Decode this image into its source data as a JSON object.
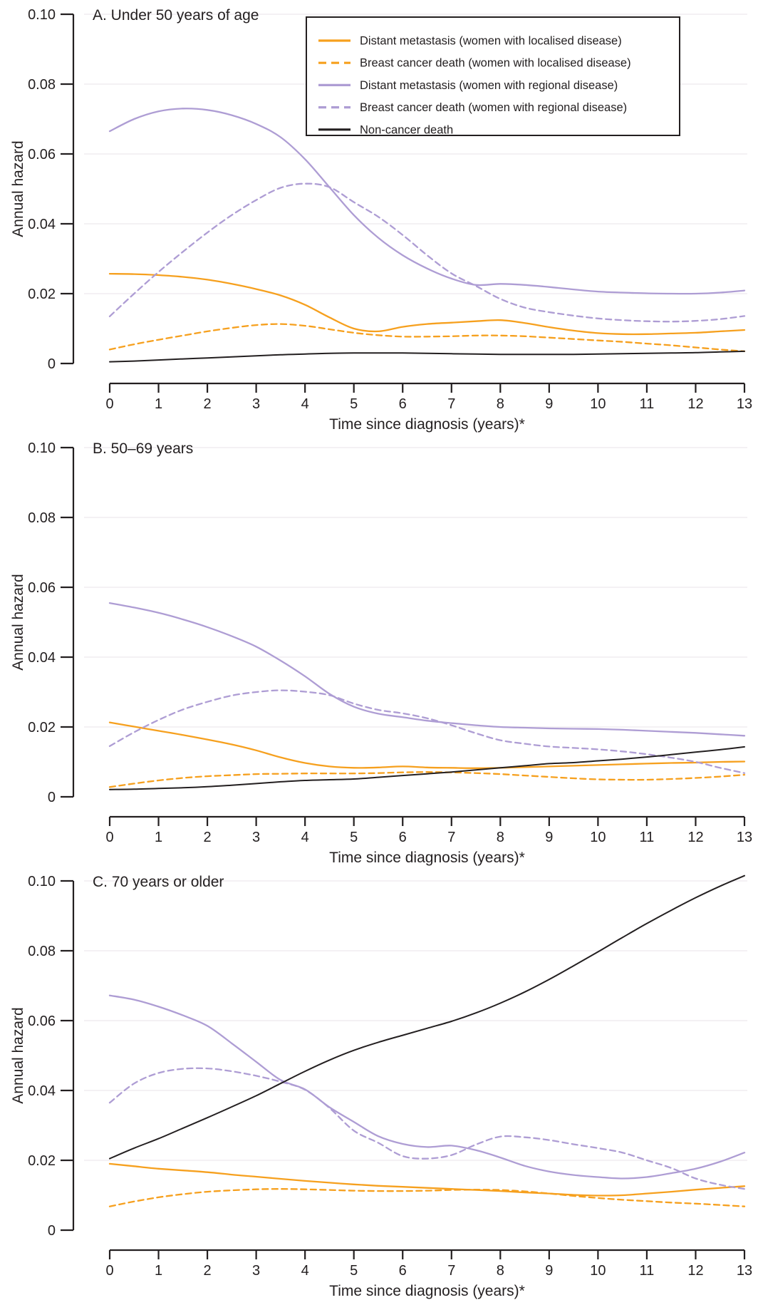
{
  "figure": {
    "background": "#ffffff",
    "text_color": "#231f20",
    "axis_color": "#231f20",
    "grid_color": "#f4f1f4",
    "y_axis_label": "Annual hazard",
    "x_axis_label": "Time since diagnosis (years)*",
    "y_ticks": [
      0,
      0.02,
      0.04,
      0.06,
      0.08,
      0.1
    ],
    "y_tick_labels": [
      "0",
      "0.02",
      "0.04",
      "0.06",
      "0.08",
      "0.10"
    ],
    "x_tick_labels": [
      "0",
      "1",
      "2",
      "3",
      "4",
      "5",
      "6",
      "7",
      "8",
      "9",
      "10",
      "11",
      "12",
      "13"
    ],
    "colors": {
      "localised": "#f6a01e",
      "regional": "#ae9dd4",
      "noncancer": "#231f20"
    },
    "legend": {
      "position": "top-right",
      "entries": [
        {
          "label": "Distant metastasis (women with localised disease)",
          "color": "#f6a01e",
          "dash": false
        },
        {
          "label": "Breast cancer death (women with localised disease)",
          "color": "#f6a01e",
          "dash": true
        },
        {
          "label": "Distant metastasis (women with regional disease)",
          "color": "#ae9dd4",
          "dash": false
        },
        {
          "label": "Breast cancer death (women with regional disease)",
          "color": "#ae9dd4",
          "dash": true
        },
        {
          "label": "Non-cancer death",
          "color": "#231f20",
          "dash": false
        }
      ]
    }
  },
  "chart_data": [
    {
      "type": "line",
      "title": "A. Under 50 years of age",
      "xlabel": "Time since diagnosis (years)*",
      "ylabel": "Annual hazard",
      "xlim": [
        0,
        13
      ],
      "ylim": [
        0,
        0.1
      ],
      "grid": true,
      "legend_visible": true,
      "x": [
        0,
        0.5,
        1,
        1.5,
        2,
        2.5,
        3,
        3.5,
        4,
        4.5,
        5,
        5.5,
        6,
        6.5,
        7,
        7.5,
        8,
        8.5,
        9,
        9.5,
        10,
        10.5,
        11,
        11.5,
        12,
        12.5,
        13
      ],
      "series": [
        {
          "name": "Distant metastasis (women with localised disease)",
          "color": "#f6a01e",
          "dash": false,
          "values": [
            0.0257,
            0.0256,
            0.0253,
            0.0248,
            0.024,
            0.0228,
            0.0213,
            0.0195,
            0.0168,
            0.0132,
            0.01,
            0.0092,
            0.0105,
            0.0113,
            0.0117,
            0.0121,
            0.0124,
            0.0116,
            0.0104,
            0.0094,
            0.0087,
            0.0084,
            0.0084,
            0.0086,
            0.0088,
            0.0092,
            0.0096
          ]
        },
        {
          "name": "Breast cancer death (women with localised disease)",
          "color": "#f6a01e",
          "dash": true,
          "values": [
            0.004,
            0.0055,
            0.0068,
            0.008,
            0.0092,
            0.0102,
            0.011,
            0.0113,
            0.0108,
            0.0098,
            0.0088,
            0.0081,
            0.0077,
            0.0077,
            0.0078,
            0.008,
            0.008,
            0.0078,
            0.0074,
            0.007,
            0.0066,
            0.0062,
            0.0057,
            0.0052,
            0.0046,
            0.004,
            0.0035
          ]
        },
        {
          "name": "Distant metastasis (women with regional disease)",
          "color": "#ae9dd4",
          "dash": false,
          "values": [
            0.0665,
            0.07,
            0.0722,
            0.073,
            0.0726,
            0.0711,
            0.0686,
            0.0648,
            0.0585,
            0.0505,
            0.0425,
            0.036,
            0.031,
            0.0272,
            0.0243,
            0.0225,
            0.0228,
            0.0225,
            0.0219,
            0.0212,
            0.0206,
            0.0203,
            0.0201,
            0.02,
            0.02,
            0.0203,
            0.0209
          ]
        },
        {
          "name": "Breast cancer death (women with regional disease)",
          "color": "#ae9dd4",
          "dash": true,
          "values": [
            0.0135,
            0.02,
            0.0262,
            0.032,
            0.0375,
            0.0425,
            0.0468,
            0.0503,
            0.0515,
            0.0505,
            0.0462,
            0.042,
            0.0368,
            0.031,
            0.0258,
            0.0222,
            0.0185,
            0.016,
            0.0147,
            0.0137,
            0.0129,
            0.0124,
            0.0121,
            0.012,
            0.0122,
            0.0127,
            0.0136
          ]
        },
        {
          "name": "Non-cancer death",
          "color": "#231f20",
          "dash": false,
          "values": [
            0.0005,
            0.0007,
            0.001,
            0.0013,
            0.0016,
            0.0019,
            0.0022,
            0.0025,
            0.0027,
            0.0029,
            0.003,
            0.003,
            0.003,
            0.0029,
            0.0028,
            0.0027,
            0.0026,
            0.0026,
            0.0026,
            0.0026,
            0.0027,
            0.0028,
            0.0029,
            0.003,
            0.0031,
            0.0033,
            0.0035
          ]
        }
      ]
    },
    {
      "type": "line",
      "title": "B. 50–69 years",
      "xlabel": "Time since diagnosis (years)*",
      "ylabel": "Annual hazard",
      "xlim": [
        0,
        13
      ],
      "ylim": [
        0,
        0.1
      ],
      "grid": true,
      "legend_visible": false,
      "x": [
        0,
        0.5,
        1,
        1.5,
        2,
        2.5,
        3,
        3.5,
        4,
        4.5,
        5,
        5.5,
        6,
        6.5,
        7,
        7.5,
        8,
        8.5,
        9,
        9.5,
        10,
        10.5,
        11,
        11.5,
        12,
        12.5,
        13
      ],
      "series": [
        {
          "name": "Distant metastasis (women with localised disease)",
          "color": "#f6a01e",
          "dash": false,
          "values": [
            0.0213,
            0.0201,
            0.0189,
            0.0177,
            0.0164,
            0.015,
            0.0133,
            0.0113,
            0.0097,
            0.0087,
            0.0083,
            0.0084,
            0.0087,
            0.0084,
            0.0083,
            0.0082,
            0.0083,
            0.0085,
            0.0087,
            0.0089,
            0.0091,
            0.0093,
            0.0095,
            0.0097,
            0.0098,
            0.01,
            0.0101
          ]
        },
        {
          "name": "Breast cancer death (women with localised disease)",
          "color": "#f6a01e",
          "dash": true,
          "values": [
            0.0028,
            0.0038,
            0.0047,
            0.0054,
            0.0059,
            0.0062,
            0.0065,
            0.0066,
            0.0067,
            0.0067,
            0.0067,
            0.0068,
            0.007,
            0.0071,
            0.007,
            0.0068,
            0.0065,
            0.0061,
            0.0057,
            0.0053,
            0.005,
            0.0049,
            0.0049,
            0.0051,
            0.0054,
            0.0058,
            0.0063
          ]
        },
        {
          "name": "Distant metastasis (women with regional disease)",
          "color": "#ae9dd4",
          "dash": false,
          "values": [
            0.0555,
            0.0542,
            0.0527,
            0.0508,
            0.0486,
            0.046,
            0.043,
            0.039,
            0.0345,
            0.0295,
            0.0258,
            0.0238,
            0.0228,
            0.0218,
            0.0211,
            0.0205,
            0.02,
            0.0198,
            0.0196,
            0.0195,
            0.0194,
            0.0192,
            0.0189,
            0.0186,
            0.0183,
            0.0179,
            0.0175
          ]
        },
        {
          "name": "Breast cancer death (women with regional disease)",
          "color": "#ae9dd4",
          "dash": true,
          "values": [
            0.0145,
            0.0185,
            0.022,
            0.025,
            0.0272,
            0.029,
            0.03,
            0.0305,
            0.0301,
            0.0291,
            0.0267,
            0.0249,
            0.0239,
            0.0225,
            0.0205,
            0.0182,
            0.0162,
            0.0152,
            0.0144,
            0.014,
            0.0136,
            0.013,
            0.0122,
            0.0112,
            0.01,
            0.0083,
            0.0068
          ]
        },
        {
          "name": "Non-cancer death",
          "color": "#231f20",
          "dash": false,
          "values": [
            0.0021,
            0.0022,
            0.0024,
            0.0026,
            0.0029,
            0.0033,
            0.0038,
            0.0043,
            0.0047,
            0.0049,
            0.0051,
            0.0056,
            0.0061,
            0.0066,
            0.0071,
            0.0077,
            0.0083,
            0.0089,
            0.0095,
            0.0098,
            0.0103,
            0.0108,
            0.0114,
            0.0121,
            0.0128,
            0.0135,
            0.0143
          ]
        }
      ]
    },
    {
      "type": "line",
      "title": "C. 70 years or older",
      "xlabel": "Time since diagnosis (years)*",
      "ylabel": "Annual hazard",
      "xlim": [
        0,
        13
      ],
      "ylim": [
        0,
        0.1
      ],
      "grid": true,
      "legend_visible": false,
      "x": [
        0,
        0.5,
        1,
        1.5,
        2,
        2.5,
        3,
        3.5,
        4,
        4.5,
        5,
        5.5,
        6,
        6.5,
        7,
        7.5,
        8,
        8.5,
        9,
        9.5,
        10,
        10.5,
        11,
        11.5,
        12,
        12.5,
        13
      ],
      "series": [
        {
          "name": "Distant metastasis (women with localised disease)",
          "color": "#f6a01e",
          "dash": false,
          "values": [
            0.019,
            0.0183,
            0.0176,
            0.0171,
            0.0166,
            0.0159,
            0.0153,
            0.0147,
            0.0141,
            0.0136,
            0.0131,
            0.0127,
            0.0124,
            0.0121,
            0.0118,
            0.0115,
            0.0112,
            0.0108,
            0.0105,
            0.0101,
            0.0099,
            0.01,
            0.0105,
            0.011,
            0.0116,
            0.0121,
            0.0126
          ]
        },
        {
          "name": "Breast cancer death (women with localised disease)",
          "color": "#f6a01e",
          "dash": true,
          "values": [
            0.0068,
            0.0082,
            0.0094,
            0.0103,
            0.011,
            0.0114,
            0.0117,
            0.0118,
            0.0117,
            0.0115,
            0.0113,
            0.0112,
            0.0112,
            0.0113,
            0.0115,
            0.0116,
            0.0115,
            0.0111,
            0.0105,
            0.0098,
            0.0092,
            0.0087,
            0.0083,
            0.0079,
            0.0076,
            0.0072,
            0.0068
          ]
        },
        {
          "name": "Distant metastasis (women with regional disease)",
          "color": "#ae9dd4",
          "dash": false,
          "values": [
            0.0672,
            0.066,
            0.064,
            0.0615,
            0.0585,
            0.0535,
            0.0482,
            0.043,
            0.0403,
            0.0352,
            0.031,
            0.0269,
            0.0247,
            0.0238,
            0.0242,
            0.0229,
            0.0208,
            0.0184,
            0.0168,
            0.0158,
            0.0152,
            0.0148,
            0.0152,
            0.0163,
            0.0176,
            0.0196,
            0.0222
          ]
        },
        {
          "name": "Breast cancer death (women with regional disease)",
          "color": "#ae9dd4",
          "dash": true,
          "values": [
            0.0365,
            0.042,
            0.045,
            0.0462,
            0.0463,
            0.0455,
            0.0442,
            0.0425,
            0.0402,
            0.035,
            0.0285,
            0.025,
            0.0212,
            0.0205,
            0.0215,
            0.0245,
            0.0268,
            0.0266,
            0.0258,
            0.0246,
            0.0235,
            0.0222,
            0.02,
            0.0178,
            0.0148,
            0.013,
            0.0118
          ]
        },
        {
          "name": "Non-cancer death",
          "color": "#231f20",
          "dash": false,
          "values": [
            0.0205,
            0.0235,
            0.0262,
            0.0292,
            0.0322,
            0.0353,
            0.0385,
            0.042,
            0.0455,
            0.0487,
            0.0515,
            0.0538,
            0.0558,
            0.0578,
            0.0598,
            0.0622,
            0.065,
            0.0682,
            0.0718,
            0.0757,
            0.0797,
            0.0838,
            0.0878,
            0.0916,
            0.0952,
            0.0985,
            0.1015
          ]
        }
      ]
    }
  ]
}
